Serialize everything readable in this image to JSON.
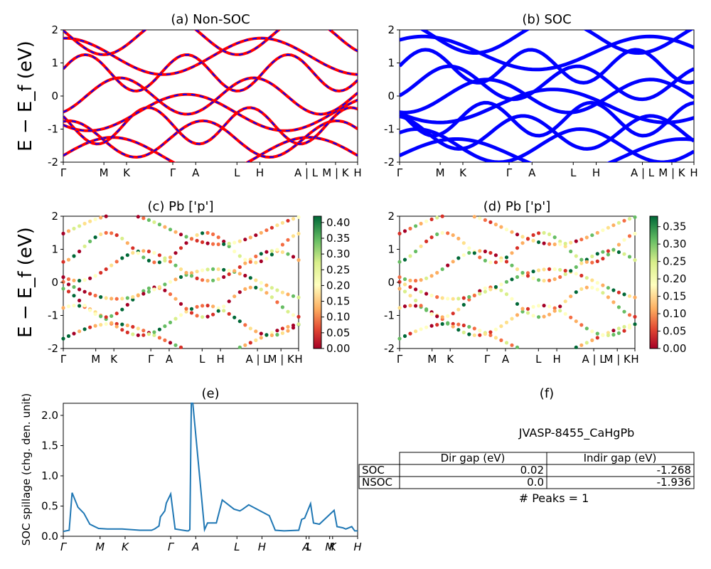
{
  "figure_id": "JVASP-8455_CaHgPb",
  "colors": {
    "red": "#ff0000",
    "blue": "#0000ff",
    "line": "#1f77b4"
  },
  "chart_data": [
    {
      "id": "a",
      "type": "line",
      "title": "(a) Non-SOC",
      "ylabel": "E − E_f (eV)",
      "ylim": [
        -2,
        2
      ],
      "yticks": [
        -2,
        -1,
        0,
        1,
        2
      ],
      "xtick_labels": [
        "Γ",
        "M",
        "K",
        "Γ",
        "A",
        "L",
        "H",
        "A | L",
        "M | K",
        "H"
      ],
      "xtick_pos": [
        0,
        0.138,
        0.215,
        0.372,
        0.45,
        0.59,
        0.668,
        0.825,
        0.925,
        1.0
      ],
      "bands_y": [
        -1.8,
        -1.3,
        -0.9,
        -0.5,
        0.0,
        0.7,
        1.2,
        1.8
      ],
      "series": [
        {
          "name": "",
          "style": "red solid + blue dashed"
        }
      ]
    },
    {
      "id": "b",
      "type": "line",
      "title": "(b) SOC",
      "ylim": [
        -2,
        2
      ],
      "yticks": [
        -2,
        -1,
        0,
        1,
        2
      ],
      "xtick_labels": [
        "Γ",
        "M",
        "K",
        "Γ",
        "A",
        "L",
        "H",
        "A | L",
        "M | K",
        "H"
      ],
      "xtick_pos": [
        0,
        0.138,
        0.215,
        0.372,
        0.45,
        0.59,
        0.668,
        0.825,
        0.925,
        1.0
      ],
      "bands_y": [
        -1.8,
        -1.5,
        -1.1,
        -0.7,
        -0.3,
        0.0,
        0.4,
        0.9,
        1.3,
        1.8
      ]
    },
    {
      "id": "c",
      "type": "scatter",
      "title": "(c)  Pb ['p']",
      "ylabel": "E − E_f (eV)",
      "ylim": [
        -2,
        2
      ],
      "yticks": [
        -2,
        -1,
        0,
        1,
        2
      ],
      "xtick_labels": [
        "Γ",
        "M",
        "K",
        "Γ",
        "A",
        "L",
        "H",
        "A | L",
        "M | K",
        "H"
      ],
      "xtick_pos": [
        0,
        0.138,
        0.215,
        0.372,
        0.45,
        0.59,
        0.668,
        0.825,
        0.925,
        1.0
      ],
      "colorbar_ticks": [
        "0.00",
        "0.05",
        "0.10",
        "0.15",
        "0.20",
        "0.25",
        "0.30",
        "0.35",
        "0.40"
      ],
      "vmax": 0.42
    },
    {
      "id": "d",
      "type": "scatter",
      "title": "(d) Pb ['p']",
      "ylim": [
        -2,
        2
      ],
      "yticks": [
        -2,
        -1,
        0,
        1,
        2
      ],
      "xtick_labels": [
        "Γ",
        "M",
        "K",
        "Γ",
        "A",
        "L",
        "H",
        "A | L",
        "M | K",
        "H"
      ],
      "xtick_pos": [
        0,
        0.138,
        0.215,
        0.372,
        0.45,
        0.59,
        0.668,
        0.825,
        0.925,
        1.0
      ],
      "colorbar_ticks": [
        "0.00",
        "0.05",
        "0.10",
        "0.15",
        "0.20",
        "0.25",
        "0.30",
        "0.35"
      ],
      "vmax": 0.38
    },
    {
      "id": "e",
      "type": "line",
      "title": "(e)",
      "ylabel": "SOC spillage (chg. den. unit)",
      "ylim": [
        0,
        2.2
      ],
      "yticks": [
        "0.0",
        "0.5",
        "1.0",
        "1.5",
        "2.0"
      ],
      "xtick_labels": [
        "Γ",
        "M",
        "K",
        "Γ",
        "A",
        "L",
        "H",
        "A",
        "L",
        "M",
        "K",
        "H"
      ],
      "xtick_pos": [
        0,
        0.125,
        0.21,
        0.365,
        0.45,
        0.59,
        0.675,
        0.825,
        0.835,
        0.905,
        0.915,
        1.0
      ],
      "x": [
        0,
        0.02,
        0.03,
        0.05,
        0.07,
        0.09,
        0.12,
        0.15,
        0.2,
        0.26,
        0.3,
        0.31,
        0.325,
        0.33,
        0.345,
        0.35,
        0.365,
        0.38,
        0.42,
        0.425,
        0.43,
        0.435,
        0.44,
        0.48,
        0.49,
        0.5,
        0.52,
        0.54,
        0.58,
        0.6,
        0.61,
        0.63,
        0.7,
        0.72,
        0.75,
        0.8,
        0.81,
        0.82,
        0.84,
        0.85,
        0.87,
        0.92,
        0.93,
        0.95,
        0.96,
        0.98,
        0.99,
        1.0
      ],
      "values": [
        0.08,
        0.1,
        0.72,
        0.48,
        0.38,
        0.2,
        0.13,
        0.12,
        0.12,
        0.1,
        0.1,
        0.12,
        0.17,
        0.32,
        0.42,
        0.55,
        0.7,
        0.12,
        0.09,
        0.09,
        0.11,
        2.2,
        2.2,
        0.11,
        0.22,
        0.22,
        0.22,
        0.6,
        0.45,
        0.42,
        0.45,
        0.52,
        0.34,
        0.1,
        0.09,
        0.1,
        0.28,
        0.3,
        0.54,
        0.22,
        0.2,
        0.43,
        0.16,
        0.14,
        0.12,
        0.16,
        0.09,
        0.09
      ]
    }
  ],
  "table": {
    "title": "(f)",
    "header": [
      "Dir gap (eV)",
      "Indir gap (eV)"
    ],
    "rows": [
      {
        "label": "SOC",
        "dir": "0.02",
        "indir": "-1.268"
      },
      {
        "label": "NSOC",
        "dir": "0.0",
        "indir": "-1.936"
      }
    ],
    "peaks": "# Peaks = 1"
  }
}
